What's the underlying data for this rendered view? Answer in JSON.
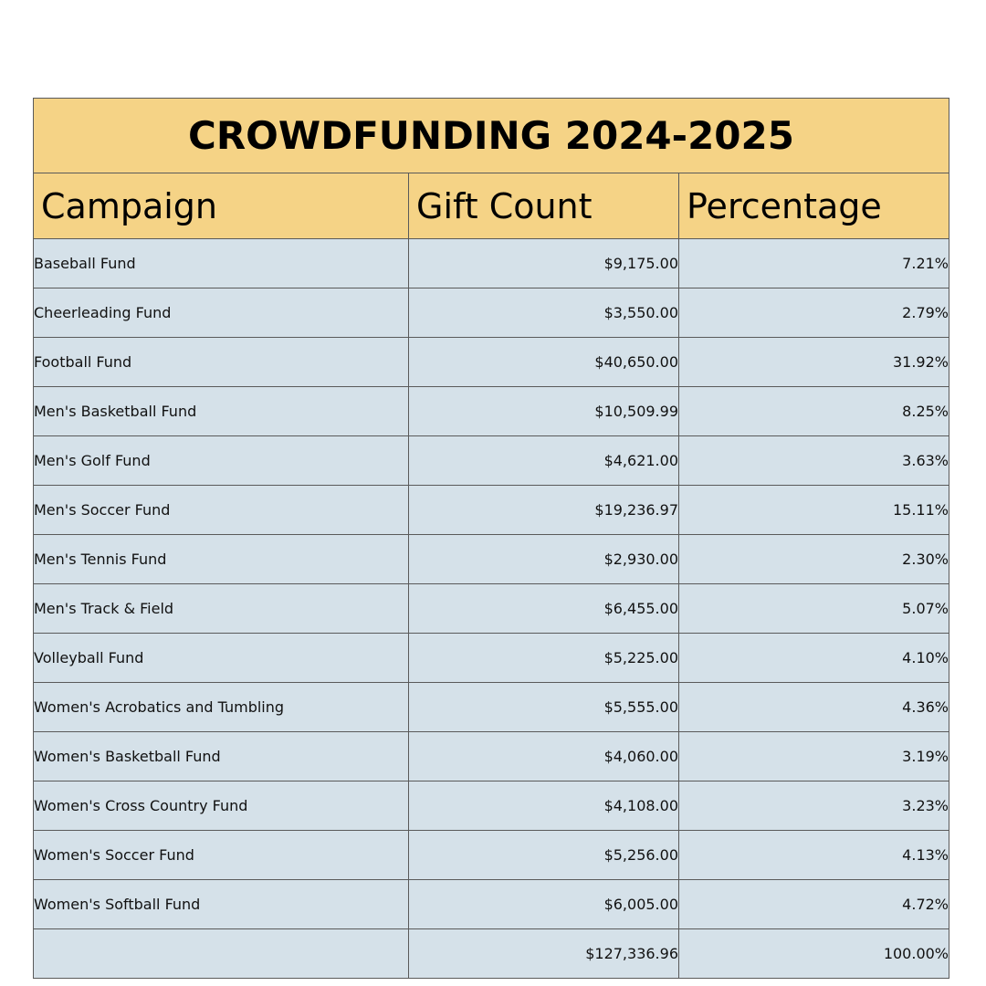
{
  "chart_data": {
    "type": "table",
    "title": "CROWDFUNDING 2024-2025",
    "columns": [
      "Campaign",
      "Gift Count",
      "Percentage"
    ],
    "rows": [
      [
        "Baseball Fund",
        "$9,175.00",
        "7.21%"
      ],
      [
        "Cheerleading Fund",
        "$3,550.00",
        "2.79%"
      ],
      [
        "Football Fund",
        "$40,650.00",
        "31.92%"
      ],
      [
        "Men's Basketball Fund",
        "$10,509.99",
        "8.25%"
      ],
      [
        "Men's Golf Fund",
        "$4,621.00",
        "3.63%"
      ],
      [
        "Men's Soccer Fund",
        "$19,236.97",
        "15.11%"
      ],
      [
        "Men's Tennis Fund",
        "$2,930.00",
        "2.30%"
      ],
      [
        "Men's Track & Field",
        "$6,455.00",
        "5.07%"
      ],
      [
        "Volleyball Fund",
        "$5,225.00",
        "4.10%"
      ],
      [
        "Women's Acrobatics and Tumbling",
        "$5,555.00",
        "4.36%"
      ],
      [
        "Women's Basketball Fund",
        "$4,060.00",
        "3.19%"
      ],
      [
        "Women's Cross Country Fund",
        "$4,108.00",
        "3.23%"
      ],
      [
        "Women's Soccer Fund",
        "$5,256.00",
        "4.13%"
      ],
      [
        "Women's Softball Fund",
        "$6,005.00",
        "4.72%"
      ],
      [
        "",
        "$127,336.96",
        "100.00%"
      ]
    ],
    "colors": {
      "header": "#f5d386",
      "body": "#d5e1e9",
      "border": "#5a5a5a"
    }
  }
}
